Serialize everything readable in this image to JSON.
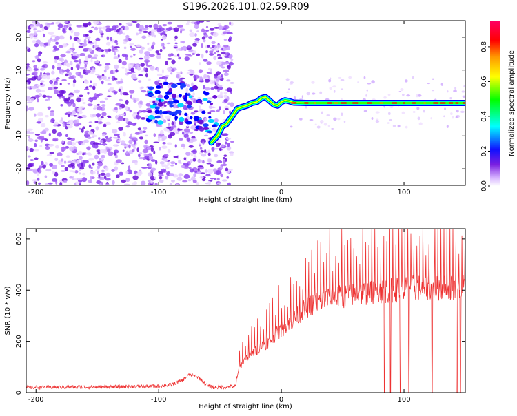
{
  "title": "S196.2026.101.02.59.R09",
  "chart_data": [
    {
      "type": "heatmap",
      "title": "S196.2026.101.02.59.R09",
      "xlabel": "Height of straight line (km)",
      "ylabel": "Frequency (Hz)",
      "xlim": [
        -208,
        150
      ],
      "ylim": [
        -25,
        25
      ],
      "xticks": [
        -200,
        -100,
        0,
        100
      ],
      "yticks": [
        -20,
        -10,
        0,
        10,
        20
      ],
      "xtick_labels": [
        "-200",
        "-100",
        "0",
        "100"
      ],
      "ytick_labels": [
        "-20",
        "-10",
        "0",
        "10",
        "20"
      ],
      "colorbar": {
        "label": "Normalized spectral amplitude",
        "range": [
          0,
          0.95
        ],
        "ticks": [
          0.0,
          0.2,
          0.4,
          0.6,
          0.8
        ],
        "tick_labels": [
          "0.0",
          "0.2",
          "0.4",
          "0.6",
          "0.8"
        ],
        "colormap": [
          "#ffffff",
          "#cc99ff",
          "#6600cc",
          "#0000ff",
          "#00ffff",
          "#00ff00",
          "#ffff00",
          "#ff8000",
          "#ff0000",
          "#ff0080"
        ]
      },
      "carrier_trace": {
        "x": [
          -57,
          -52,
          -48,
          -45,
          -40,
          -36,
          -32,
          -28,
          -24,
          -20,
          -16,
          -13,
          -9,
          -6,
          -3,
          0,
          3,
          6,
          10,
          20,
          40,
          60,
          80,
          100,
          120,
          150
        ],
        "y": [
          -12,
          -10,
          -7,
          -6.5,
          -4,
          -1.8,
          -1.2,
          -0.8,
          0,
          0.3,
          1.5,
          1.8,
          0.5,
          -0.5,
          -0.8,
          0.3,
          0.8,
          0.6,
          0.1,
          0,
          0,
          0,
          0,
          0,
          0,
          0
        ]
      },
      "noise_region": {
        "x_range": [
          -208,
          -50
        ],
        "y_range": [
          -25,
          25
        ]
      }
    },
    {
      "type": "line",
      "xlabel": "Height of straight line (km)",
      "ylabel": "SNR (10 * v/v)",
      "xlim": [
        -208,
        150
      ],
      "ylim": [
        0,
        640
      ],
      "xticks": [
        -200,
        -100,
        0,
        100
      ],
      "yticks": [
        0,
        200,
        400,
        600
      ],
      "xtick_labels": [
        "-200",
        "-100",
        "0",
        "100"
      ],
      "ytick_labels": [
        "0",
        "200",
        "400",
        "600"
      ],
      "color": "#ee3333",
      "series": [
        {
          "name": "SNR",
          "x": [
            -208,
            -150,
            -100,
            -90,
            -80,
            -75,
            -70,
            -65,
            -60,
            -55,
            -45,
            -37,
            -35,
            -30,
            -25,
            -20,
            -15,
            -10,
            -5,
            0,
            5,
            10,
            20,
            30,
            40,
            50,
            60,
            70,
            80,
            90,
            100,
            110,
            120,
            130,
            140,
            150
          ],
          "y": [
            20,
            22,
            25,
            30,
            50,
            70,
            65,
            50,
            25,
            20,
            22,
            25,
            90,
            130,
            150,
            165,
            185,
            200,
            225,
            245,
            260,
            285,
            330,
            355,
            370,
            375,
            385,
            390,
            395,
            400,
            405,
            410,
            410,
            408,
            410,
            415
          ]
        }
      ],
      "dropouts_x": [
        84,
        89,
        97,
        104,
        123,
        143,
        146
      ]
    }
  ]
}
